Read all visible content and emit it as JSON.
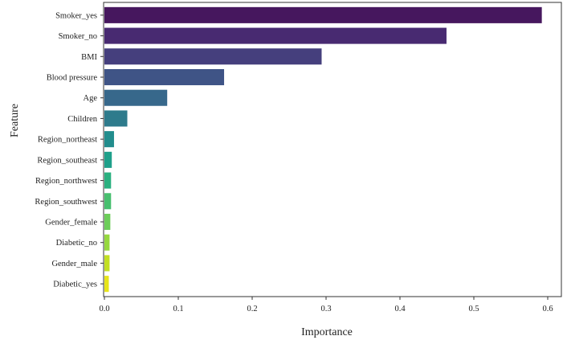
{
  "chart_data": {
    "type": "bar",
    "orientation": "horizontal",
    "xlabel": "Importance",
    "ylabel": "Feature",
    "xlim": [
      0,
      0.62
    ],
    "xticks": [
      "0.0",
      "0.1",
      "0.2",
      "0.3",
      "0.4",
      "0.5",
      "0.6"
    ],
    "categories": [
      "Smoker_yes",
      "Smoker_no",
      "BMI",
      "Blood pressure",
      "Age",
      "Children",
      "Region_northeast",
      "Region_southeast",
      "Region_northwest",
      "Region_southwest",
      "Gender_female",
      "Diabetic_no",
      "Gender_male",
      "Diabetic_yes"
    ],
    "values": [
      0.592,
      0.463,
      0.294,
      0.162,
      0.085,
      0.031,
      0.013,
      0.01,
      0.009,
      0.009,
      0.008,
      0.007,
      0.007,
      0.006
    ],
    "colors": [
      "#46175e",
      "#482a71",
      "#453f7d",
      "#3f5486",
      "#37688b",
      "#2e7b8c",
      "#228d8d",
      "#1fa08a",
      "#2ab07f",
      "#47bf6e",
      "#6ccd59",
      "#96d83e",
      "#c2df23",
      "#e7e419"
    ],
    "grid": false,
    "legend": "none"
  }
}
